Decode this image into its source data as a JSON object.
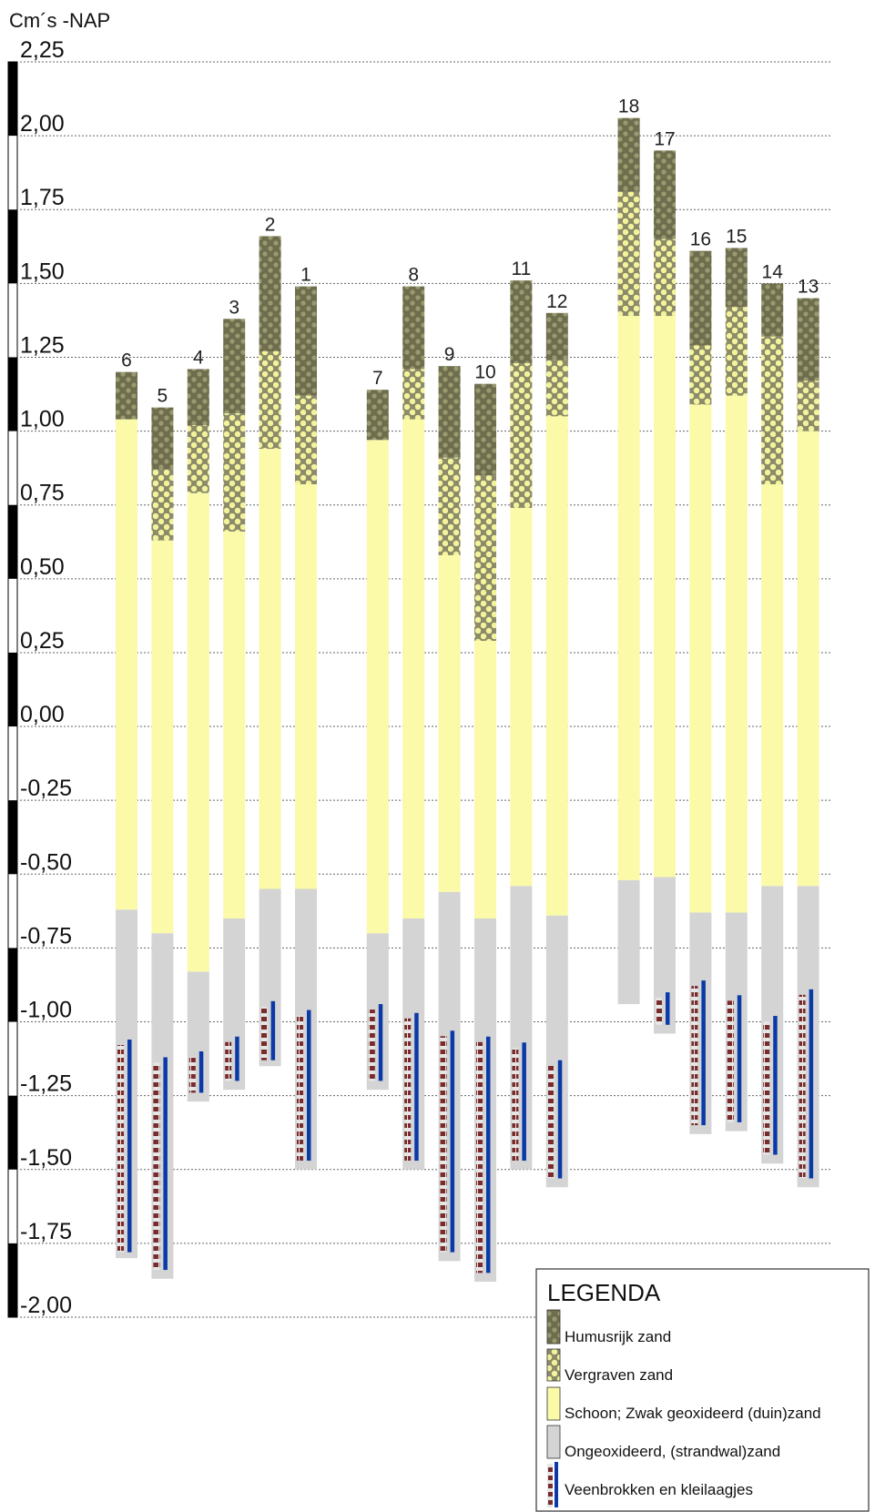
{
  "chart_data": {
    "type": "bar",
    "ylabel": "Cm´s -NAP",
    "ylim": [
      -2.0,
      2.25
    ],
    "grid": true,
    "tick_values": [
      2.25,
      2.0,
      1.75,
      1.5,
      1.25,
      1.0,
      0.75,
      0.5,
      0.25,
      0.0,
      -0.25,
      -0.5,
      -0.75,
      -1.0,
      -1.25,
      -1.5,
      -1.75,
      -2.0
    ],
    "tick_labels": [
      "2,25",
      "2,00",
      "1,75",
      "1,50",
      "1,25",
      "1,00",
      "0,75",
      "0,50",
      "0,25",
      "0,00",
      "-0,25",
      "-0,50",
      "-0,75",
      "-1,00",
      "-1,25",
      "-1,50",
      "-1,75",
      "-2,00"
    ],
    "legend_position": "bottom-right",
    "legend": {
      "title": "LEGENDA",
      "items": [
        {
          "key": "humus",
          "label": "Humusrijk zand",
          "color": "#6e6e4e"
        },
        {
          "key": "dug",
          "label": "Vergraven zand",
          "color": "#f3f39c"
        },
        {
          "key": "clean",
          "label": "Schoon; Zwak geoxideerd (duin)zand",
          "color": "#fafaa8"
        },
        {
          "key": "unox",
          "label": "Ongeoxideerd, (strandwal)zand",
          "color": "#d4d4d4"
        },
        {
          "key": "peat",
          "label": "Veenbrokken en kleilaagjes",
          "color": "#7a2b2b",
          "line_color": "#0a3aa8"
        }
      ]
    },
    "cores": [
      {
        "label": "6",
        "col": 0,
        "top": 1.2,
        "humus_bottom": 1.04,
        "dug_bottom": 1.04,
        "clean_bottom": -0.62,
        "bottom": -1.8,
        "peat_top": -1.06,
        "peat_bottom": -1.78
      },
      {
        "label": "5",
        "col": 1,
        "top": 1.08,
        "humus_bottom": 0.87,
        "dug_bottom": 0.63,
        "clean_bottom": -0.7,
        "bottom": -1.87,
        "peat_top": -1.12,
        "peat_bottom": -1.84
      },
      {
        "label": "4",
        "col": 2,
        "top": 1.21,
        "humus_bottom": 1.02,
        "dug_bottom": 0.79,
        "clean_bottom": -0.83,
        "bottom": -1.27,
        "peat_top": -1.1,
        "peat_bottom": -1.24
      },
      {
        "label": "3",
        "col": 3,
        "top": 1.38,
        "humus_bottom": 1.06,
        "dug_bottom": 0.66,
        "clean_bottom": -0.65,
        "bottom": -1.23,
        "peat_top": -1.05,
        "peat_bottom": -1.2
      },
      {
        "label": "2",
        "col": 4,
        "top": 1.66,
        "humus_bottom": 1.27,
        "dug_bottom": 0.94,
        "clean_bottom": -0.55,
        "bottom": -1.15,
        "peat_top": -0.93,
        "peat_bottom": -1.13
      },
      {
        "label": "1",
        "col": 5,
        "top": 1.49,
        "humus_bottom": 1.12,
        "dug_bottom": 0.82,
        "clean_bottom": -0.55,
        "bottom": -1.5,
        "peat_top": -0.96,
        "peat_bottom": -1.47
      },
      {
        "label": "7",
        "col": 7,
        "top": 1.14,
        "humus_bottom": 0.97,
        "dug_bottom": 0.97,
        "clean_bottom": -0.7,
        "bottom": -1.23,
        "peat_top": -0.94,
        "peat_bottom": -1.2
      },
      {
        "label": "8",
        "col": 8,
        "top": 1.49,
        "humus_bottom": 1.21,
        "dug_bottom": 1.04,
        "clean_bottom": -0.65,
        "bottom": -1.5,
        "peat_top": -0.97,
        "peat_bottom": -1.47
      },
      {
        "label": "9",
        "col": 9,
        "top": 1.22,
        "humus_bottom": 0.91,
        "dug_bottom": 0.58,
        "clean_bottom": -0.56,
        "bottom": -1.81,
        "peat_top": -1.03,
        "peat_bottom": -1.78
      },
      {
        "label": "10",
        "col": 10,
        "top": 1.16,
        "humus_bottom": 0.85,
        "dug_bottom": 0.29,
        "clean_bottom": -0.65,
        "bottom": -1.88,
        "peat_top": -1.05,
        "peat_bottom": -1.85
      },
      {
        "label": "11",
        "col": 11,
        "top": 1.51,
        "humus_bottom": 1.23,
        "dug_bottom": 0.74,
        "clean_bottom": -0.54,
        "bottom": -1.5,
        "peat_top": -1.07,
        "peat_bottom": -1.47
      },
      {
        "label": "12",
        "col": 12,
        "top": 1.4,
        "humus_bottom": 1.24,
        "dug_bottom": 1.05,
        "clean_bottom": -0.64,
        "bottom": -1.56,
        "peat_top": -1.13,
        "peat_bottom": -1.53
      },
      {
        "label": "18",
        "col": 14,
        "top": 2.06,
        "humus_bottom": 1.81,
        "dug_bottom": 1.39,
        "clean_bottom": -0.52,
        "bottom": -0.94
      },
      {
        "label": "17",
        "col": 15,
        "top": 1.95,
        "humus_bottom": 1.65,
        "dug_bottom": 1.39,
        "clean_bottom": -0.51,
        "bottom": -1.04,
        "peat_top": -0.9,
        "peat_bottom": -1.01
      },
      {
        "label": "16",
        "col": 16,
        "top": 1.61,
        "humus_bottom": 1.29,
        "dug_bottom": 1.09,
        "clean_bottom": -0.63,
        "bottom": -1.38,
        "peat_top": -0.86,
        "peat_bottom": -1.35
      },
      {
        "label": "15",
        "col": 17,
        "top": 1.62,
        "humus_bottom": 1.42,
        "dug_bottom": 1.12,
        "clean_bottom": -0.63,
        "bottom": -1.37,
        "peat_top": -0.91,
        "peat_bottom": -1.34
      },
      {
        "label": "14",
        "col": 18,
        "top": 1.5,
        "humus_bottom": 1.32,
        "dug_bottom": 0.82,
        "clean_bottom": -0.54,
        "bottom": -1.48,
        "peat_top": -0.98,
        "peat_bottom": -1.45
      },
      {
        "label": "13",
        "col": 19,
        "top": 1.45,
        "humus_bottom": 1.17,
        "dug_bottom": 1.0,
        "clean_bottom": -0.54,
        "bottom": -1.56,
        "peat_top": -0.89,
        "peat_bottom": -1.53
      }
    ]
  }
}
